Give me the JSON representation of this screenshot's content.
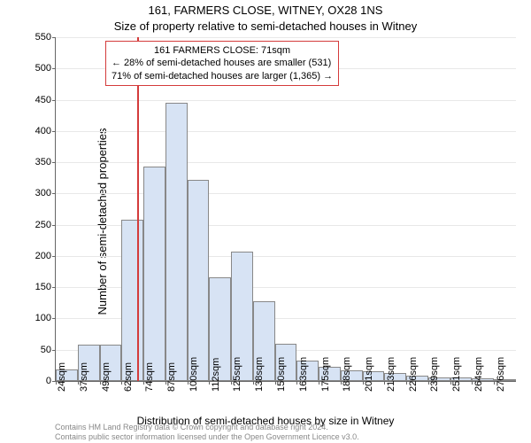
{
  "title_line1": "161, FARMERS CLOSE, WITNEY, OX28 1NS",
  "title_line2": "Size of property relative to semi-detached houses in Witney",
  "ylabel": "Number of semi-detached properties",
  "xlabel": "Distribution of semi-detached houses by size in Witney",
  "footnote_line1": "Contains HM Land Registry data © Crown copyright and database right 2024.",
  "footnote_line2": "Contains public sector information licensed under the Open Government Licence v3.0.",
  "chart": {
    "type": "histogram",
    "background_color": "#ffffff",
    "grid_color": "#e8e8e8",
    "axis_color": "#666666",
    "bar_fill": "#d7e3f4",
    "bar_border": "#888888",
    "marker_color": "#d43b3b",
    "marker_x_value": 71,
    "ylim": [
      0,
      550
    ],
    "ytick_step": 50,
    "label_fontsize": 11,
    "xstart": 24,
    "xstep": 12.6,
    "xticks": [
      24,
      37,
      49,
      62,
      74,
      87,
      100,
      112,
      125,
      138,
      150,
      163,
      175,
      188,
      201,
      213,
      226,
      239,
      251,
      264,
      276
    ],
    "xtick_suffix": "sqm",
    "values": [
      19,
      58,
      58,
      258,
      343,
      445,
      322,
      166,
      207,
      128,
      59,
      32,
      23,
      17,
      16,
      13,
      8,
      6,
      5,
      4,
      3
    ],
    "info_box": {
      "border_color": "#d43b3b",
      "title": "161 FARMERS CLOSE: 71sqm",
      "line1": "← 28% of semi-detached houses are smaller (531)",
      "line2": "71% of semi-detached houses are larger (1,365) →"
    }
  }
}
